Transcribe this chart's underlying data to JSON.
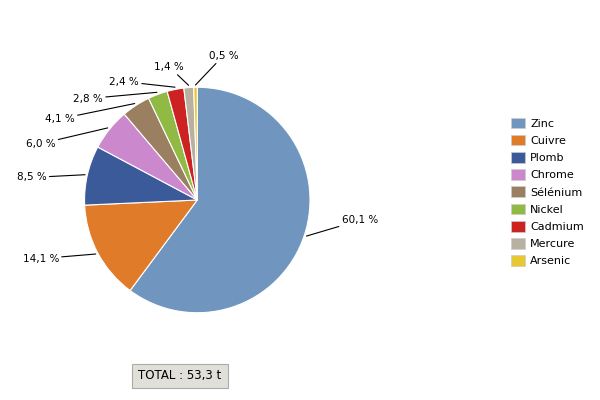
{
  "labels": [
    "Zinc",
    "Cuivre",
    "Plomb",
    "Chrome",
    "Sélénium",
    "Nickel",
    "Cadmium",
    "Mercure",
    "Arsenic"
  ],
  "values": [
    60.1,
    14.1,
    8.5,
    6.0,
    4.1,
    2.8,
    2.4,
    1.4,
    0.5
  ],
  "colors": [
    "#7096c0",
    "#e07b2a",
    "#3a5a9a",
    "#cc88cc",
    "#9a8060",
    "#90ba44",
    "#cc2222",
    "#b8b0a0",
    "#e8c832"
  ],
  "pct_labels": [
    "60,1 %",
    "14,1 %",
    "8,5 %",
    "6,0 %",
    "4,1 %",
    "2,8 %",
    "2,4 %",
    "1,4 %",
    "0,5 %"
  ],
  "total_label": "TOTAL : 53,3 t",
  "background_color": "#ffffff"
}
